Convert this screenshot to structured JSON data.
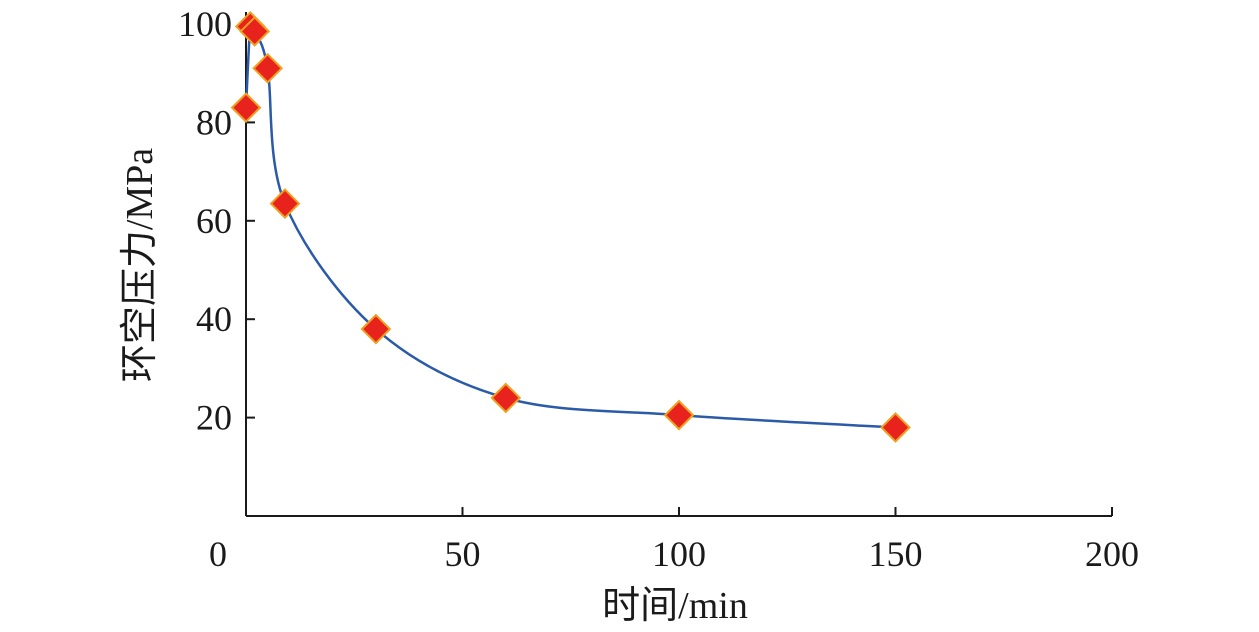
{
  "chart_data": {
    "type": "scatter",
    "title": "",
    "xlabel": "时间/min",
    "ylabel": "环空压力/MPa",
    "xlim": [
      0,
      200
    ],
    "ylim": [
      0,
      100
    ],
    "xticks": [
      0,
      50,
      100,
      150,
      200
    ],
    "yticks": [
      20,
      40,
      60,
      80,
      100
    ],
    "x_tick_labels": [
      "0",
      "50",
      "100",
      "150",
      "200"
    ],
    "y_tick_labels": [
      "20",
      "40",
      "60",
      "80",
      "100"
    ],
    "grid": false,
    "legend": false,
    "series": [
      {
        "marker": "diamond",
        "marker_color": "#e8231e",
        "marker_edge_color": "#f0a020",
        "line_color": "#2a5aa8",
        "x": [
          0,
          1,
          2,
          5,
          9,
          30,
          60,
          100,
          150
        ],
        "y": [
          83,
          99.5,
          98.5,
          91,
          63.5,
          38,
          24,
          20.5,
          18
        ]
      }
    ]
  }
}
